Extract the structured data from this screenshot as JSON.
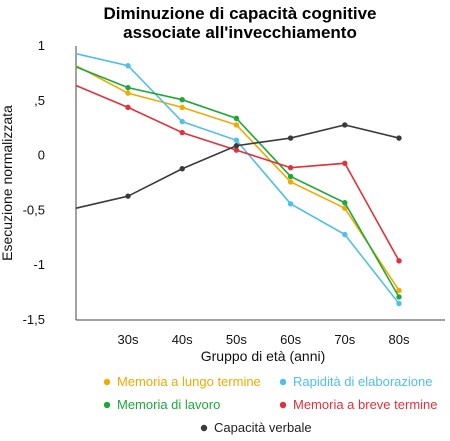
{
  "chart_data": {
    "type": "line",
    "title": [
      "Diminuzione di capacità cognitive",
      "associate all'invecchiamento"
    ],
    "xlabel": "Gruppo di età (anni)",
    "ylabel": "Esecuzione normalizzata",
    "ylim": [
      -1.5,
      1
    ],
    "y_ticks": [
      {
        "value": 1,
        "label": "1"
      },
      {
        "value": 0.5,
        "label": ",5"
      },
      {
        "value": 0,
        "label": "0"
      },
      {
        "value": -0.5,
        "label": "-0,5"
      },
      {
        "value": -1,
        "label": "-1"
      },
      {
        "value": -1.5,
        "label": "-1,5"
      }
    ],
    "categories": [
      "30s",
      "40s",
      "50s",
      "60s",
      "70s",
      "80s"
    ],
    "grid": false,
    "legend_position": "bottom",
    "series": [
      {
        "name": "Memoria a lungo termine",
        "color": "#F2A900",
        "start": 0.82,
        "values": [
          0.57,
          0.44,
          0.28,
          -0.24,
          -0.48,
          -1.23
        ]
      },
      {
        "name": "Rapidità di elaborazione",
        "color": "#4FC0E8",
        "start": 0.93,
        "values": [
          0.82,
          0.31,
          0.14,
          -0.44,
          -0.72,
          -1.35
        ]
      },
      {
        "name": "Memoria di lavoro",
        "color": "#1EA83C",
        "start": 0.81,
        "values": [
          0.62,
          0.51,
          0.34,
          -0.19,
          -0.43,
          -1.29
        ]
      },
      {
        "name": "Memoria a breve termine",
        "color": "#E0323B",
        "start": 0.64,
        "values": [
          0.44,
          0.21,
          0.05,
          -0.11,
          -0.07,
          -0.96
        ]
      },
      {
        "name": "Capacità verbale",
        "color": "#3A3A3A",
        "start": -0.48,
        "values": [
          -0.37,
          -0.12,
          0.09,
          0.16,
          0.28,
          0.16
        ]
      }
    ]
  }
}
